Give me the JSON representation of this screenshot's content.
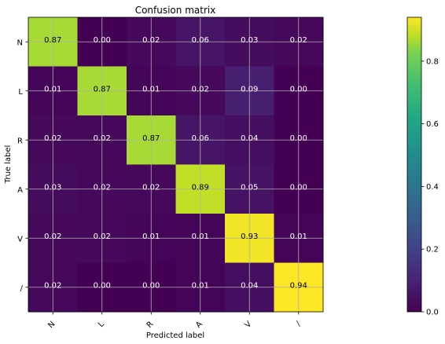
{
  "chart_data": {
    "type": "heatmap",
    "title": "Confusion matrix",
    "xlabel": "Predicted label",
    "ylabel": "True label",
    "x_categories": [
      "N",
      "L",
      "R",
      "A",
      "V",
      "/"
    ],
    "y_categories": [
      "N",
      "L",
      "R",
      "A",
      "V",
      "/"
    ],
    "values": [
      [
        0.87,
        0.0,
        0.02,
        0.06,
        0.03,
        0.02
      ],
      [
        0.01,
        0.87,
        0.01,
        0.02,
        0.09,
        0.0
      ],
      [
        0.02,
        0.02,
        0.87,
        0.06,
        0.04,
        0.0
      ],
      [
        0.03,
        0.02,
        0.02,
        0.89,
        0.05,
        0.0
      ],
      [
        0.02,
        0.02,
        0.01,
        0.01,
        0.93,
        0.01
      ],
      [
        0.02,
        0.0,
        0.0,
        0.01,
        0.04,
        0.94
      ]
    ],
    "value_labels": [
      [
        "0.87",
        "0.00",
        "0.02",
        "0.06",
        "0.03",
        "0.02"
      ],
      [
        "0.01",
        "0.87",
        "0.01",
        "0.02",
        "0.09",
        "0.00"
      ],
      [
        "0.02",
        "0.02",
        "0.87",
        "0.06",
        "0.04",
        "0.00"
      ],
      [
        "0.03",
        "0.02",
        "0.02",
        "0.89",
        "0.05",
        "0.00"
      ],
      [
        "0.02",
        "0.02",
        "0.01",
        "0.01",
        "0.93",
        "0.01"
      ],
      [
        "0.02",
        "0.00",
        "0.00",
        "0.01",
        "0.04",
        "0.94"
      ]
    ],
    "colormap": "viridis",
    "color_range": [
      0,
      0.94
    ],
    "grid": true,
    "colorbar": {
      "ticks": [
        0.0,
        0.2,
        0.4,
        0.6,
        0.8
      ],
      "tick_labels": [
        "0.0",
        "0.2",
        "0.4",
        "0.6",
        "0.8"
      ]
    }
  }
}
